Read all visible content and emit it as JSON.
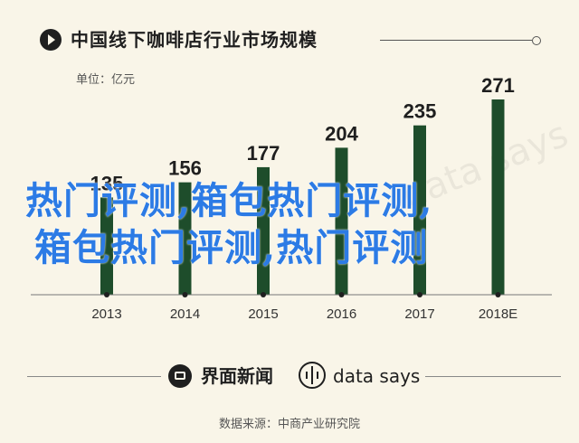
{
  "header": {
    "title": "中国线下咖啡店行业市场规模",
    "unit": "单位：亿元",
    "icon": "play-icon"
  },
  "chart_data": {
    "type": "bar",
    "title": "中国线下咖啡店行业市场规模",
    "ylabel": "单位：亿元",
    "categories": [
      "2013",
      "2014",
      "2015",
      "2016",
      "2017",
      "2018E"
    ],
    "values": [
      135,
      156,
      177,
      204,
      235,
      271
    ],
    "ylim": [
      0,
      280
    ],
    "grid": false,
    "legend": "none",
    "bar_color": "#1e4d2b"
  },
  "overlay_text": {
    "line1": "热门评测,箱包热门评测,",
    "line2": "箱包热门评测,热门评测"
  },
  "watermark": "data says",
  "footer": {
    "brand1": "界面新闻",
    "brand2": "data says",
    "source": "数据来源：中商产业研究院"
  }
}
